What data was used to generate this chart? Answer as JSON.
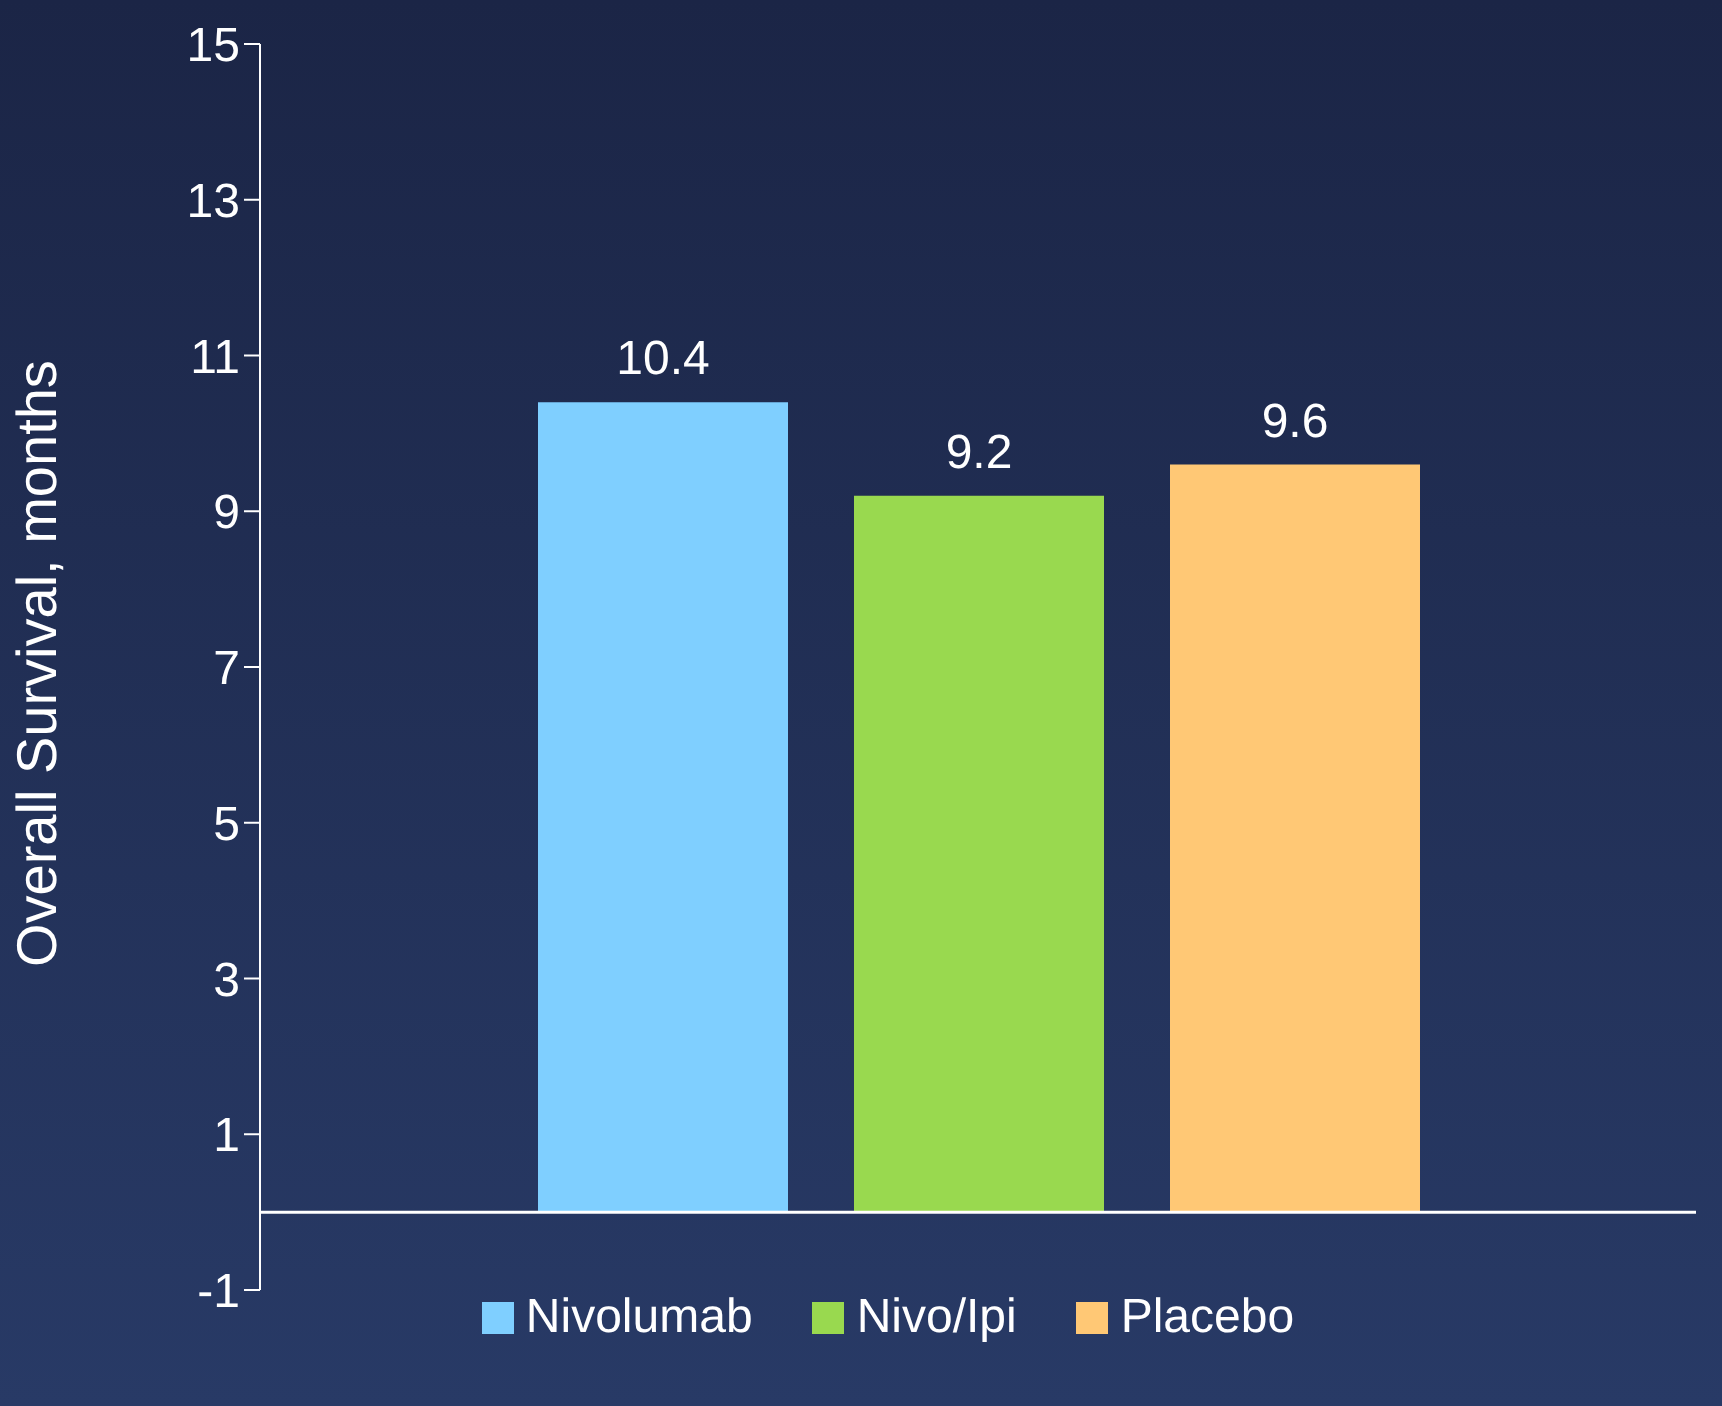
{
  "chart_data": {
    "type": "bar",
    "ylabel": "Overall Survival, months",
    "categories": [
      null
    ],
    "series": [
      {
        "name": "Nivolumab",
        "color": "#7fcfff",
        "values": [
          10.4
        ]
      },
      {
        "name": "Nivo/Ipi",
        "color": "#99d94f",
        "values": [
          9.2
        ]
      },
      {
        "name": "Placebo",
        "color": "#ffc875",
        "values": [
          9.6
        ]
      }
    ],
    "ylim": [
      -1,
      15
    ],
    "yticks": [
      -1,
      1,
      3,
      5,
      7,
      9,
      11,
      13,
      15
    ],
    "data_labels": true,
    "legend": "bottom",
    "grid": false,
    "tick_labels": "y"
  }
}
